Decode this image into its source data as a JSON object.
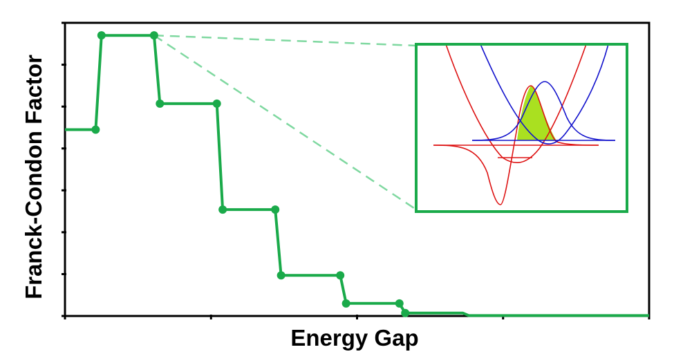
{
  "chart_data": {
    "type": "line",
    "step": true,
    "title": "",
    "xlabel": "Energy Gap",
    "ylabel": "Franck-Condon Factor",
    "xlim": [
      0,
      8
    ],
    "ylim": [
      0,
      7
    ],
    "tick_labels_shown": false,
    "grid": false,
    "series": [
      {
        "line_color": "#1aaa4a",
        "points": [
          {
            "x": 0.42,
            "y": 4.45
          },
          {
            "x": 0.5,
            "y": 6.7
          },
          {
            "x": 1.22,
            "y": 6.7
          },
          {
            "x": 1.3,
            "y": 5.07
          },
          {
            "x": 2.08,
            "y": 5.07
          },
          {
            "x": 2.16,
            "y": 2.54
          },
          {
            "x": 2.88,
            "y": 2.54
          },
          {
            "x": 2.96,
            "y": 0.97
          },
          {
            "x": 3.77,
            "y": 0.97
          },
          {
            "x": 3.85,
            "y": 0.3
          },
          {
            "x": 4.58,
            "y": 0.3
          },
          {
            "x": 4.66,
            "y": 0.07
          }
        ],
        "line_start": {
          "x": 0,
          "y": 4.45
        },
        "line_tail": [
          {
            "x": 5.45,
            "y": 0.07
          },
          {
            "x": 5.53,
            "y": 0.01
          },
          {
            "x": 8,
            "y": 0.01
          }
        ]
      }
    ],
    "inset": {
      "callout_point": {
        "x": 1.22,
        "y": 6.7
      },
      "border_color": "#1aaa4a",
      "lower_curve_color": "#dd1111",
      "upper_curve_color": "#1111cc",
      "overlap_fill_color": "#aae020"
    }
  }
}
